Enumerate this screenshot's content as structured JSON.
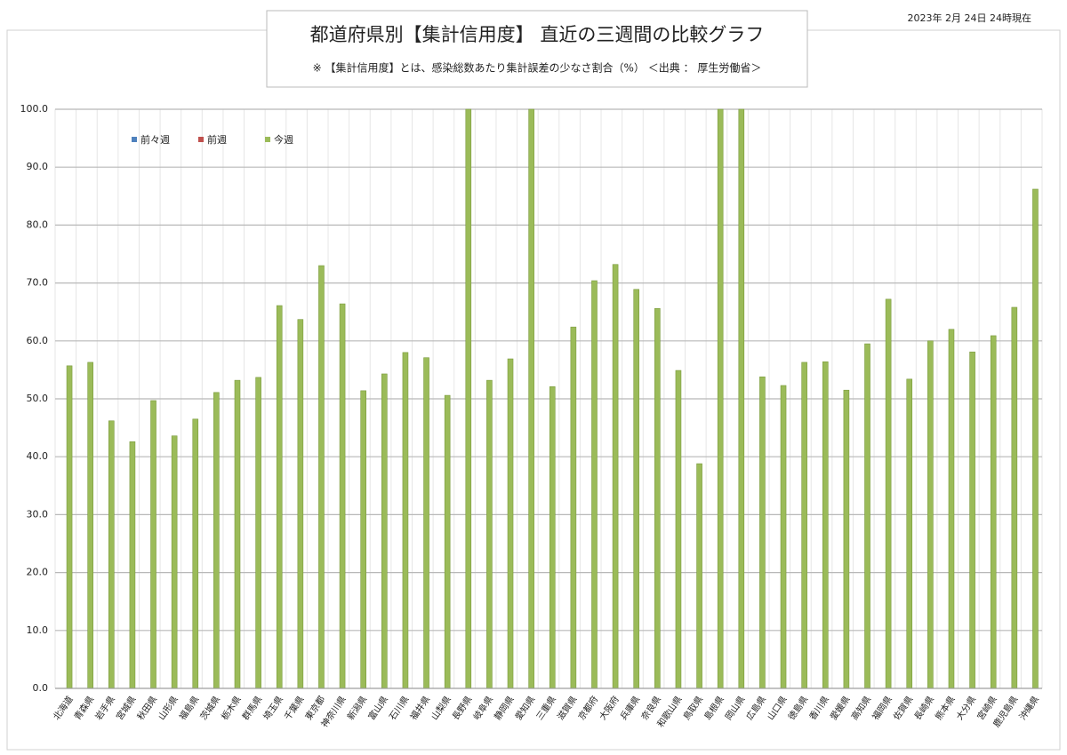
{
  "chart_data": {
    "type": "bar",
    "title": "都道府県別【集計信用度】 直近の三週間の比較グラフ",
    "subtitle": "※ 【集計信用度】とは、感染総数あたり集計誤差の少なさ割合（%） ＜出典 ： 厚生労働省＞",
    "annotation": "2023年 2月 24日 24時現在",
    "categories": [
      "北海道",
      "青森県",
      "岩手県",
      "宮城県",
      "秋田県",
      "山形県",
      "福島県",
      "茨城県",
      "栃木県",
      "群馬県",
      "埼玉県",
      "千葉県",
      "東京都",
      "神奈川県",
      "新潟県",
      "富山県",
      "石川県",
      "福井県",
      "山梨県",
      "長野県",
      "岐阜県",
      "静岡県",
      "愛知県",
      "三重県",
      "滋賀県",
      "京都府",
      "大阪府",
      "兵庫県",
      "奈良県",
      "和歌山県",
      "鳥取県",
      "島根県",
      "岡山県",
      "広島県",
      "山口県",
      "徳島県",
      "香川県",
      "愛媛県",
      "高知県",
      "福岡県",
      "佐賀県",
      "長崎県",
      "熊本県",
      "大分県",
      "宮崎県",
      "鹿児島県",
      "沖縄県"
    ],
    "series": [
      {
        "name": "前々週",
        "color": "#4f81bd",
        "values": [
          null,
          null,
          null,
          null,
          null,
          null,
          null,
          null,
          null,
          null,
          null,
          null,
          null,
          null,
          null,
          null,
          null,
          null,
          null,
          null,
          null,
          null,
          null,
          null,
          null,
          null,
          null,
          null,
          null,
          null,
          null,
          null,
          null,
          null,
          null,
          null,
          null,
          null,
          null,
          null,
          null,
          null,
          null,
          null,
          null,
          null,
          null
        ]
      },
      {
        "name": "前週",
        "color": "#c0504d",
        "values": [
          null,
          null,
          null,
          null,
          null,
          null,
          null,
          null,
          null,
          null,
          null,
          null,
          null,
          null,
          null,
          null,
          null,
          null,
          null,
          null,
          null,
          null,
          null,
          null,
          null,
          null,
          null,
          null,
          null,
          null,
          null,
          null,
          null,
          null,
          null,
          null,
          null,
          null,
          null,
          null,
          null,
          null,
          null,
          null,
          null,
          null,
          null
        ]
      },
      {
        "name": "今週",
        "color": "#9bbb59",
        "values": [
          55.7,
          56.3,
          46.2,
          42.6,
          49.7,
          43.6,
          46.5,
          51.1,
          53.2,
          53.7,
          66.1,
          63.7,
          73.0,
          66.4,
          51.4,
          54.3,
          58.0,
          57.1,
          50.6,
          100,
          53.2,
          56.9,
          100,
          52.1,
          62.4,
          70.4,
          73.2,
          68.9,
          65.6,
          54.9,
          38.8,
          100,
          100,
          53.8,
          52.3,
          56.3,
          56.4,
          51.5,
          59.5,
          67.2,
          53.4,
          60.0,
          62.0,
          58.1,
          60.9,
          65.8,
          86.2
        ]
      }
    ],
    "ylim": [
      0,
      100
    ],
    "yticks": [
      {
        "value": 0,
        "label": "0.0"
      },
      {
        "value": 10,
        "label": "10.0"
      },
      {
        "value": 20,
        "label": "20.0"
      },
      {
        "value": 30,
        "label": "30.0"
      },
      {
        "value": 40,
        "label": "40.0"
      },
      {
        "value": 50,
        "label": "50.0"
      },
      {
        "value": 60,
        "label": "60.0"
      },
      {
        "value": 70,
        "label": "70.0"
      },
      {
        "value": 80,
        "label": "80.0"
      },
      {
        "value": 90,
        "label": "90.0"
      },
      {
        "value": 100,
        "label": "100.0"
      }
    ],
    "grid": true
  }
}
